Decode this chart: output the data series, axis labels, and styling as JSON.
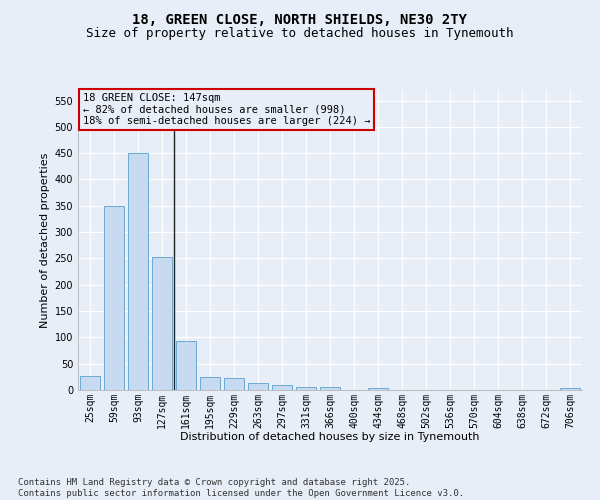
{
  "title_line1": "18, GREEN CLOSE, NORTH SHIELDS, NE30 2TY",
  "title_line2": "Size of property relative to detached houses in Tynemouth",
  "xlabel": "Distribution of detached houses by size in Tynemouth",
  "ylabel": "Number of detached properties",
  "categories": [
    "25sqm",
    "59sqm",
    "93sqm",
    "127sqm",
    "161sqm",
    "195sqm",
    "229sqm",
    "263sqm",
    "297sqm",
    "331sqm",
    "366sqm",
    "400sqm",
    "434sqm",
    "468sqm",
    "502sqm",
    "536sqm",
    "570sqm",
    "604sqm",
    "638sqm",
    "672sqm",
    "706sqm"
  ],
  "values": [
    27,
    350,
    450,
    253,
    93,
    25,
    23,
    13,
    10,
    6,
    5,
    0,
    4,
    0,
    0,
    0,
    0,
    0,
    0,
    0,
    4
  ],
  "bar_color": "#c8daf0",
  "bar_edge_color": "#6aaad4",
  "vline_x": 3.5,
  "vline_color": "#222222",
  "annotation_box_text": "18 GREEN CLOSE: 147sqm\n← 82% of detached houses are smaller (998)\n18% of semi-detached houses are larger (224) →",
  "box_edge_color": "#cc0000",
  "ylim": [
    0,
    570
  ],
  "yticks": [
    0,
    50,
    100,
    150,
    200,
    250,
    300,
    350,
    400,
    450,
    500,
    550
  ],
  "background_color": "#e8eef8",
  "axes_bg_color": "#e8eef8",
  "grid_color": "#ffffff",
  "footnote": "Contains HM Land Registry data © Crown copyright and database right 2025.\nContains public sector information licensed under the Open Government Licence v3.0.",
  "title_fontsize": 10,
  "subtitle_fontsize": 9,
  "label_fontsize": 8,
  "tick_fontsize": 7,
  "annot_fontsize": 7.5,
  "footnote_fontsize": 6.5
}
